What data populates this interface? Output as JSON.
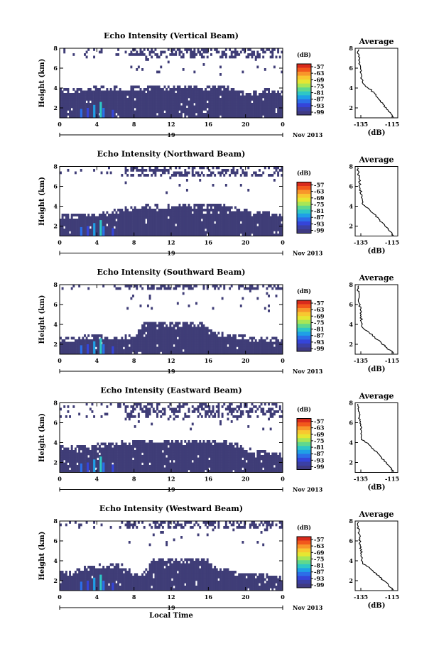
{
  "figure": {
    "xlabel": "Local Time",
    "day_label": "19",
    "month_label": "Nov 2013",
    "colorbar_unit": "(dB)",
    "colorbar_ticks": [
      "-57",
      "-63",
      "-69",
      "-75",
      "-81",
      "-87",
      "-93",
      "-99"
    ],
    "colorbar_colors": [
      "#d92b1c",
      "#f2581c",
      "#f8962a",
      "#f8c830",
      "#e6e632",
      "#a8e656",
      "#5fd88e",
      "#2ec7c6",
      "#1fa0e6",
      "#2c6ee8",
      "#3545d9",
      "#3b40a5",
      "#3f3a82"
    ],
    "background_color": "#3f3d77",
    "profile_title": "Average",
    "profile_xlabel": "(dB)"
  },
  "chart_data": [
    {
      "type": "heatmap",
      "title": "Echo Intensity (Vertical Beam)",
      "xlabel": "Local Time",
      "ylabel": "Height (km)",
      "x_ticks": [
        "0",
        "4",
        "8",
        "12",
        "16",
        "20",
        "0"
      ],
      "y_ticks": [
        "2",
        "4",
        "6",
        "8"
      ],
      "x_range_hours": [
        0,
        24
      ],
      "y_range_km": [
        1,
        8
      ],
      "lower_layer_top_km": [
        3.8,
        3.6,
        3.8,
        3.9,
        4.0,
        3.8,
        3.9,
        3.8,
        3.9,
        4.0,
        4.1,
        4.0,
        4.0,
        4.1,
        4.1,
        4.0,
        4.0,
        4.0,
        3.9,
        3.7,
        3.3,
        3.4,
        3.8,
        3.6,
        3.5
      ],
      "upper_echo_km": [
        7.0,
        8.0
      ],
      "profile": {
        "title": "Average",
        "xlabel": "(dB)",
        "x_ticks": [
          "-135",
          "-115"
        ],
        "y_ticks": [
          "2",
          "4",
          "6",
          "8"
        ]
      }
    },
    {
      "type": "heatmap",
      "title": "Echo Intensity (Northward Beam)",
      "xlabel": "Local Time",
      "ylabel": "Height (km)",
      "x_ticks": [
        "0",
        "4",
        "8",
        "12",
        "16",
        "20",
        "0"
      ],
      "y_ticks": [
        "2",
        "4",
        "6",
        "8"
      ],
      "x_range_hours": [
        0,
        24
      ],
      "y_range_km": [
        1,
        8
      ],
      "lower_layer_top_km": [
        3.0,
        2.9,
        3.0,
        3.1,
        3.0,
        3.2,
        3.4,
        3.6,
        3.8,
        3.9,
        4.0,
        4.0,
        4.0,
        4.1,
        4.0,
        4.0,
        4.0,
        4.0,
        3.8,
        3.6,
        3.4,
        3.3,
        3.2,
        3.1,
        3.0
      ],
      "upper_echo_km": [
        6.8,
        8.0
      ],
      "profile": {
        "title": "Average",
        "xlabel": "(dB)",
        "x_ticks": [
          "-135",
          "-115"
        ],
        "y_ticks": [
          "2",
          "4",
          "6",
          "8"
        ]
      }
    },
    {
      "type": "heatmap",
      "title": "Echo Intensity (Southward Beam)",
      "xlabel": "Local Time",
      "ylabel": "Height (km)",
      "x_ticks": [
        "0",
        "4",
        "8",
        "12",
        "16",
        "20",
        "0"
      ],
      "y_ticks": [
        "2",
        "4",
        "6",
        "8"
      ],
      "x_range_hours": [
        0,
        24
      ],
      "y_range_km": [
        1,
        8
      ],
      "lower_layer_top_km": [
        2.5,
        2.4,
        2.6,
        2.7,
        2.8,
        2.6,
        2.5,
        2.6,
        2.7,
        3.9,
        4.0,
        3.9,
        3.9,
        4.0,
        3.9,
        3.9,
        3.8,
        3.0,
        2.8,
        2.7,
        2.6,
        2.4,
        2.5,
        2.4,
        2.3
      ],
      "upper_echo_km": [
        7.5,
        8.0
      ],
      "profile": {
        "title": "Average",
        "xlabel": "(dB)",
        "x_ticks": [
          "-135",
          "-115"
        ],
        "y_ticks": [
          "2",
          "4",
          "6",
          "8"
        ]
      }
    },
    {
      "type": "heatmap",
      "title": "Echo Intensity (Eastward Beam)",
      "xlabel": "Local Time",
      "ylabel": "Height (km)",
      "x_ticks": [
        "0",
        "4",
        "8",
        "12",
        "16",
        "20",
        "0"
      ],
      "y_ticks": [
        "2",
        "4",
        "6",
        "8"
      ],
      "x_range_hours": [
        0,
        24
      ],
      "y_range_km": [
        1,
        8
      ],
      "lower_layer_top_km": [
        3.4,
        3.3,
        3.5,
        3.6,
        3.6,
        3.7,
        3.8,
        3.9,
        4.0,
        4.1,
        4.1,
        4.0,
        4.1,
        4.0,
        4.0,
        4.1,
        4.0,
        4.0,
        3.9,
        3.7,
        3.3,
        3.0,
        2.9,
        2.8,
        2.7
      ],
      "upper_echo_km": [
        6.5,
        8.0
      ],
      "profile": {
        "title": "Average",
        "xlabel": "(dB)",
        "x_ticks": [
          "-135",
          "-115"
        ],
        "y_ticks": [
          "2",
          "4",
          "6",
          "8"
        ]
      }
    },
    {
      "type": "heatmap",
      "title": "Echo Intensity (Westward Beam)",
      "xlabel": "Local Time",
      "ylabel": "Height (km)",
      "x_ticks": [
        "0",
        "4",
        "8",
        "12",
        "16",
        "20",
        "0"
      ],
      "y_ticks": [
        "2",
        "4",
        "6",
        "8"
      ],
      "x_range_hours": [
        0,
        24
      ],
      "y_range_km": [
        1,
        8
      ],
      "lower_layer_top_km": [
        2.8,
        2.7,
        3.0,
        3.3,
        3.4,
        3.3,
        3.5,
        3.4,
        2.6,
        2.5,
        4.0,
        4.1,
        4.0,
        4.0,
        4.0,
        4.1,
        4.0,
        2.9,
        3.1,
        2.6,
        2.5,
        2.4,
        2.5,
        2.3,
        2.2
      ],
      "upper_echo_km": [
        7.2,
        8.0
      ],
      "profile": {
        "title": "Average",
        "xlabel": "(dB)",
        "x_ticks": [
          "-135",
          "-115"
        ],
        "y_ticks": [
          "2",
          "4",
          "6",
          "8"
        ]
      }
    }
  ]
}
